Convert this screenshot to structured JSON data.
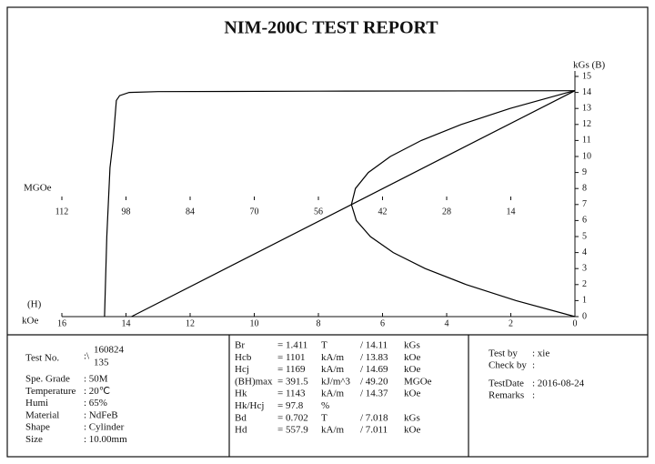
{
  "chart_data": {
    "type": "line",
    "title": "NIM-200C TEST REPORT",
    "y_label": "kGs (B)",
    "x_label_top": "(H)",
    "x_label": "kOe",
    "x2_label": "MGOe",
    "xlim": [
      16,
      0
    ],
    "xticks": [
      16,
      14,
      12,
      10,
      8,
      6,
      4,
      2,
      0
    ],
    "x2lim": [
      112,
      0
    ],
    "x2ticks": [
      112,
      98,
      84,
      70,
      56,
      42,
      28,
      14
    ],
    "ylim": [
      0,
      15
    ],
    "yticks": [
      15,
      14,
      13,
      12,
      11,
      10,
      9,
      8,
      7,
      6,
      5,
      4,
      3,
      2,
      1,
      0
    ],
    "series": [
      {
        "color": "#000000",
        "x": [
          0,
          8,
          13,
          13.9,
          14.2,
          14.3,
          14.4,
          14.5,
          14.6,
          14.67
        ],
        "values": [
          14.11,
          14.08,
          14.05,
          14.0,
          13.8,
          13.5,
          11,
          9.3,
          5,
          0
        ]
      },
      {
        "color": "#000000",
        "x": [
          0,
          13.83
        ],
        "values": [
          14.11,
          0
        ]
      },
      {
        "color": "#000000",
        "axis": "x2",
        "x": [
          0,
          1.52,
          14.15,
          24.82,
          33.54,
          40.29,
          45.09,
          47.92,
          48.8,
          47.71,
          44.66,
          39.65,
          32.68,
          23.74,
          12.85,
          0
        ],
        "values": [
          14.11,
          14,
          13,
          12,
          11,
          10,
          9,
          8,
          7,
          6,
          5,
          4,
          3,
          2,
          1,
          0
        ]
      }
    ]
  },
  "left": {
    "test_no": {
      "label": "Test No.",
      "sep": ":\\",
      "lines": [
        "160824",
        "135"
      ]
    },
    "rows": [
      [
        "Spe. Grade",
        ": 50M"
      ],
      [
        "Temperature",
        ": 20℃"
      ],
      [
        "Humi",
        ": 65%"
      ],
      [
        "Material",
        ": NdFeB"
      ],
      [
        "Shape",
        ": Cylinder"
      ],
      [
        "Size",
        ": 10.00mm"
      ]
    ]
  },
  "middle": {
    "rows": [
      [
        "Br",
        "= 1.411",
        "T",
        "/ 14.11",
        "kGs"
      ],
      [
        "Hcb",
        "= 1101",
        "kA/m",
        "/ 13.83",
        "kOe"
      ],
      [
        "Hcj",
        "= 1169",
        "kA/m",
        "/ 14.69",
        "kOe"
      ],
      [
        "(BH)max",
        "= 391.5",
        "kJ/m^3",
        "/ 49.20",
        "MGOe"
      ],
      [
        "Hk",
        "= 1143",
        "kA/m",
        "/ 14.37",
        "kOe"
      ],
      [
        "Hk/Hcj",
        "= 97.8",
        "%",
        "",
        ""
      ],
      [
        "Bd",
        "= 0.702",
        "T",
        "/ 7.018",
        "kGs"
      ],
      [
        "Hd",
        "= 557.9",
        "kA/m",
        "/ 7.011",
        "kOe"
      ]
    ]
  },
  "right": {
    "rows": [
      [
        "Test by",
        ": xie"
      ],
      [
        "Check by",
        ":"
      ],
      [
        "TestDate",
        ": 2016-08-24"
      ],
      [
        "Remarks",
        ":"
      ]
    ]
  }
}
